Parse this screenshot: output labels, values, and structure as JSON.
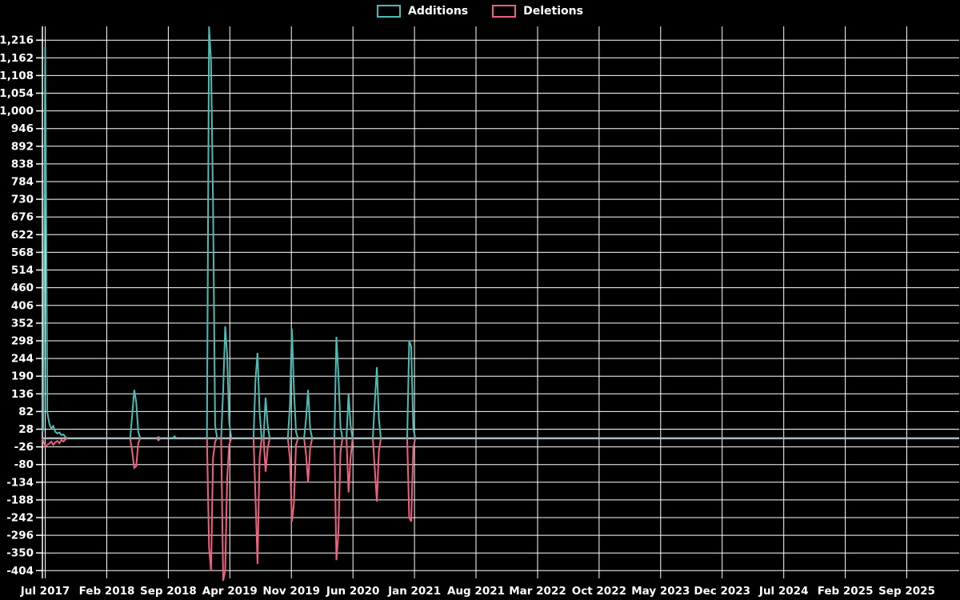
{
  "chart_data": {
    "type": "line",
    "title": "",
    "background_color": "#000000",
    "grid_color": "#FFFFFF",
    "text_color": "#FFFFFF",
    "zero_line_color": "#A9BBC2",
    "legend": [
      {
        "name": "Additions",
        "color": "#4CBDB5"
      },
      {
        "name": "Deletions",
        "color": "#F0617D"
      }
    ],
    "x_axis": {
      "unit": "weeks since Jul 2017",
      "labels": [
        "Jul 2017",
        "Feb 2018",
        "Sep 2018",
        "Apr 2019",
        "Nov 2019",
        "Jun 2020",
        "Jan 2021",
        "Aug 2021",
        "Mar 2022",
        "Oct 2022",
        "May 2023",
        "Dec 2023",
        "Jul 2024",
        "Feb 2025",
        "Sep 2025"
      ],
      "tick_weeks": [
        0,
        30.44,
        60.87,
        91.31,
        121.74,
        152.18,
        182.61,
        213.05,
        243.48,
        273.92,
        304.35,
        334.79,
        365.22,
        395.66,
        426.09
      ]
    },
    "y_axis": {
      "min": -435,
      "max": 1258,
      "tick_values": [
        1216,
        1162,
        1108,
        1054,
        1000,
        946,
        892,
        838,
        784,
        730,
        676,
        622,
        568,
        514,
        460,
        406,
        352,
        298,
        244,
        190,
        136,
        82,
        28,
        -26,
        -80,
        -134,
        -188,
        -242,
        -296,
        -350,
        -404
      ],
      "tick_labels": [
        "1,216",
        "1,162",
        "1,108",
        "1,054",
        "1,000",
        "946",
        "892",
        "838",
        "784",
        "730",
        "676",
        "622",
        "568",
        "514",
        "460",
        "406",
        "352",
        "298",
        "244",
        "190",
        "136",
        "82",
        "28",
        "-26",
        "-80",
        "-134",
        "-188",
        "-242",
        "-296",
        "-350",
        "-404"
      ]
    },
    "weeks_range": [
      -1.4,
      452
    ],
    "series": [
      {
        "name": "Additions",
        "color": "#4CBDB5",
        "runs": [
          [
            [
              -1.4,
              20
            ],
            [
              -1,
              26
            ],
            [
              0,
              1196
            ],
            [
              1,
              80
            ],
            [
              2,
              45
            ],
            [
              3,
              30
            ],
            [
              4,
              38
            ],
            [
              5,
              20
            ],
            [
              6,
              15
            ],
            [
              7,
              18
            ],
            [
              8,
              10
            ],
            [
              9,
              12
            ],
            [
              10,
              4
            ],
            [
              11,
              0
            ]
          ],
          [
            [
              42,
              0
            ],
            [
              43,
              70
            ],
            [
              44,
              148
            ],
            [
              45,
              110
            ],
            [
              46,
              20
            ],
            [
              47,
              0
            ]
          ],
          [
            [
              55,
              0
            ],
            [
              56,
              4
            ],
            [
              57,
              0
            ]
          ],
          [
            [
              63,
              0
            ],
            [
              64,
              6
            ],
            [
              65,
              0
            ]
          ],
          [
            [
              80,
              0
            ],
            [
              81,
              1258
            ],
            [
              82,
              1150
            ],
            [
              83,
              715
            ],
            [
              84,
              40
            ],
            [
              85,
              0
            ]
          ],
          [
            [
              87,
              0
            ],
            [
              88,
              150
            ],
            [
              89,
              342
            ],
            [
              90,
              250
            ],
            [
              91,
              50
            ],
            [
              92,
              0
            ]
          ],
          [
            [
              103,
              0
            ],
            [
              104,
              180
            ],
            [
              105,
              261
            ],
            [
              106,
              80
            ],
            [
              107,
              0
            ]
          ],
          [
            [
              108,
              0
            ],
            [
              109,
              124
            ],
            [
              110,
              40
            ],
            [
              111,
              0
            ]
          ],
          [
            [
              120,
              0
            ],
            [
              121,
              100
            ],
            [
              122,
              335
            ],
            [
              123,
              150
            ],
            [
              124,
              20
            ],
            [
              125,
              0
            ]
          ],
          [
            [
              128,
              0
            ],
            [
              129,
              60
            ],
            [
              130,
              148
            ],
            [
              131,
              30
            ],
            [
              132,
              0
            ]
          ],
          [
            [
              143,
              0
            ],
            [
              144,
              310
            ],
            [
              145,
              195
            ],
            [
              146,
              35
            ],
            [
              147,
              0
            ]
          ],
          [
            [
              149,
              0
            ],
            [
              150,
              135
            ],
            [
              151,
              40
            ],
            [
              152,
              0
            ]
          ],
          [
            [
              162,
              0
            ],
            [
              163,
              111
            ],
            [
              164,
              217
            ],
            [
              165,
              60
            ],
            [
              166,
              0
            ]
          ],
          [
            [
              179,
              0
            ],
            [
              180,
              298
            ],
            [
              181,
              280
            ],
            [
              182,
              30
            ],
            [
              183,
              0
            ]
          ]
        ]
      },
      {
        "name": "Deletions",
        "color": "#F0617D",
        "runs": [
          [
            [
              -1.4,
              0
            ],
            [
              0,
              -24
            ],
            [
              1,
              -20
            ],
            [
              2,
              -16
            ],
            [
              3,
              -10
            ],
            [
              4,
              -20
            ],
            [
              5,
              -12
            ],
            [
              6,
              -8
            ],
            [
              7,
              -15
            ],
            [
              8,
              -5
            ],
            [
              9,
              -10
            ],
            [
              10,
              -3
            ],
            [
              11,
              0
            ]
          ],
          [
            [
              42,
              0
            ],
            [
              43,
              -40
            ],
            [
              44,
              -90
            ],
            [
              45,
              -85
            ],
            [
              46,
              -15
            ],
            [
              47,
              0
            ]
          ],
          [
            [
              55,
              0
            ],
            [
              56,
              -6
            ],
            [
              57,
              0
            ]
          ],
          [
            [
              80,
              0
            ],
            [
              81,
              -333
            ],
            [
              82,
              -404
            ],
            [
              83,
              -60
            ],
            [
              84,
              -10
            ],
            [
              85,
              0
            ]
          ],
          [
            [
              87,
              0
            ],
            [
              88,
              -435
            ],
            [
              89,
              -404
            ],
            [
              90,
              -120
            ],
            [
              91,
              -20
            ],
            [
              92,
              0
            ]
          ],
          [
            [
              103,
              0
            ],
            [
              104,
              -181
            ],
            [
              105,
              -384
            ],
            [
              106,
              -60
            ],
            [
              107,
              0
            ]
          ],
          [
            [
              108,
              0
            ],
            [
              109,
              -102
            ],
            [
              110,
              -30
            ],
            [
              111,
              0
            ]
          ],
          [
            [
              120,
              0
            ],
            [
              121,
              -60
            ],
            [
              122,
              -254
            ],
            [
              123,
              -200
            ],
            [
              124,
              -20
            ],
            [
              125,
              0
            ]
          ],
          [
            [
              128,
              0
            ],
            [
              129,
              -50
            ],
            [
              130,
              -134
            ],
            [
              131,
              -30
            ],
            [
              132,
              0
            ]
          ],
          [
            [
              143,
              0
            ],
            [
              144,
              -372
            ],
            [
              145,
              -290
            ],
            [
              146,
              -40
            ],
            [
              147,
              0
            ]
          ],
          [
            [
              149,
              0
            ],
            [
              150,
              -165
            ],
            [
              151,
              -60
            ],
            [
              152,
              0
            ]
          ],
          [
            [
              162,
              0
            ],
            [
              163,
              -94
            ],
            [
              164,
              -193
            ],
            [
              165,
              -40
            ],
            [
              166,
              0
            ]
          ],
          [
            [
              179,
              0
            ],
            [
              180,
              -242
            ],
            [
              181,
              -254
            ],
            [
              182,
              -30
            ],
            [
              183,
              0
            ]
          ]
        ]
      }
    ]
  }
}
